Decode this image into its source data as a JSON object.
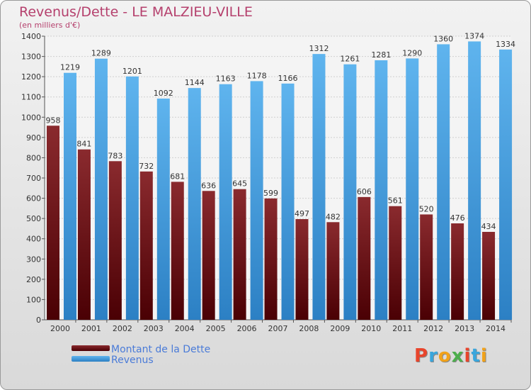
{
  "chart_data": {
    "type": "bar",
    "title": "Revenus/Dette - LE MALZIEU-VILLE",
    "subtitle": "(en milliers d'€)",
    "categories": [
      "2000",
      "2001",
      "2002",
      "2003",
      "2004",
      "2005",
      "2006",
      "2007",
      "2008",
      "2009",
      "2010",
      "2011",
      "2012",
      "2013",
      "2014"
    ],
    "series": [
      {
        "name": "Montant de la Dette",
        "color": "#7a1418",
        "values": [
          958,
          841,
          783,
          732,
          681,
          636,
          645,
          599,
          497,
          482,
          606,
          561,
          520,
          476,
          434
        ]
      },
      {
        "name": "Revenus",
        "color": "#3f9fe0",
        "values": [
          1219,
          1289,
          1201,
          1092,
          1144,
          1163,
          1178,
          1166,
          1312,
          1261,
          1281,
          1290,
          1360,
          1374,
          1334
        ]
      }
    ],
    "ylim": [
      0,
      1400
    ],
    "yticks": [
      0,
      100,
      200,
      300,
      400,
      500,
      600,
      700,
      800,
      900,
      1000,
      1100,
      1200,
      1300,
      1400
    ],
    "grid": true,
    "legend_position": "bottom-left"
  },
  "logo": {
    "text": "Proxiti",
    "colors": [
      "#e8452c",
      "#3aa6dc",
      "#f1a21a",
      "#4cae4c",
      "#e8452c",
      "#3aa6dc",
      "#f1a21a"
    ]
  }
}
